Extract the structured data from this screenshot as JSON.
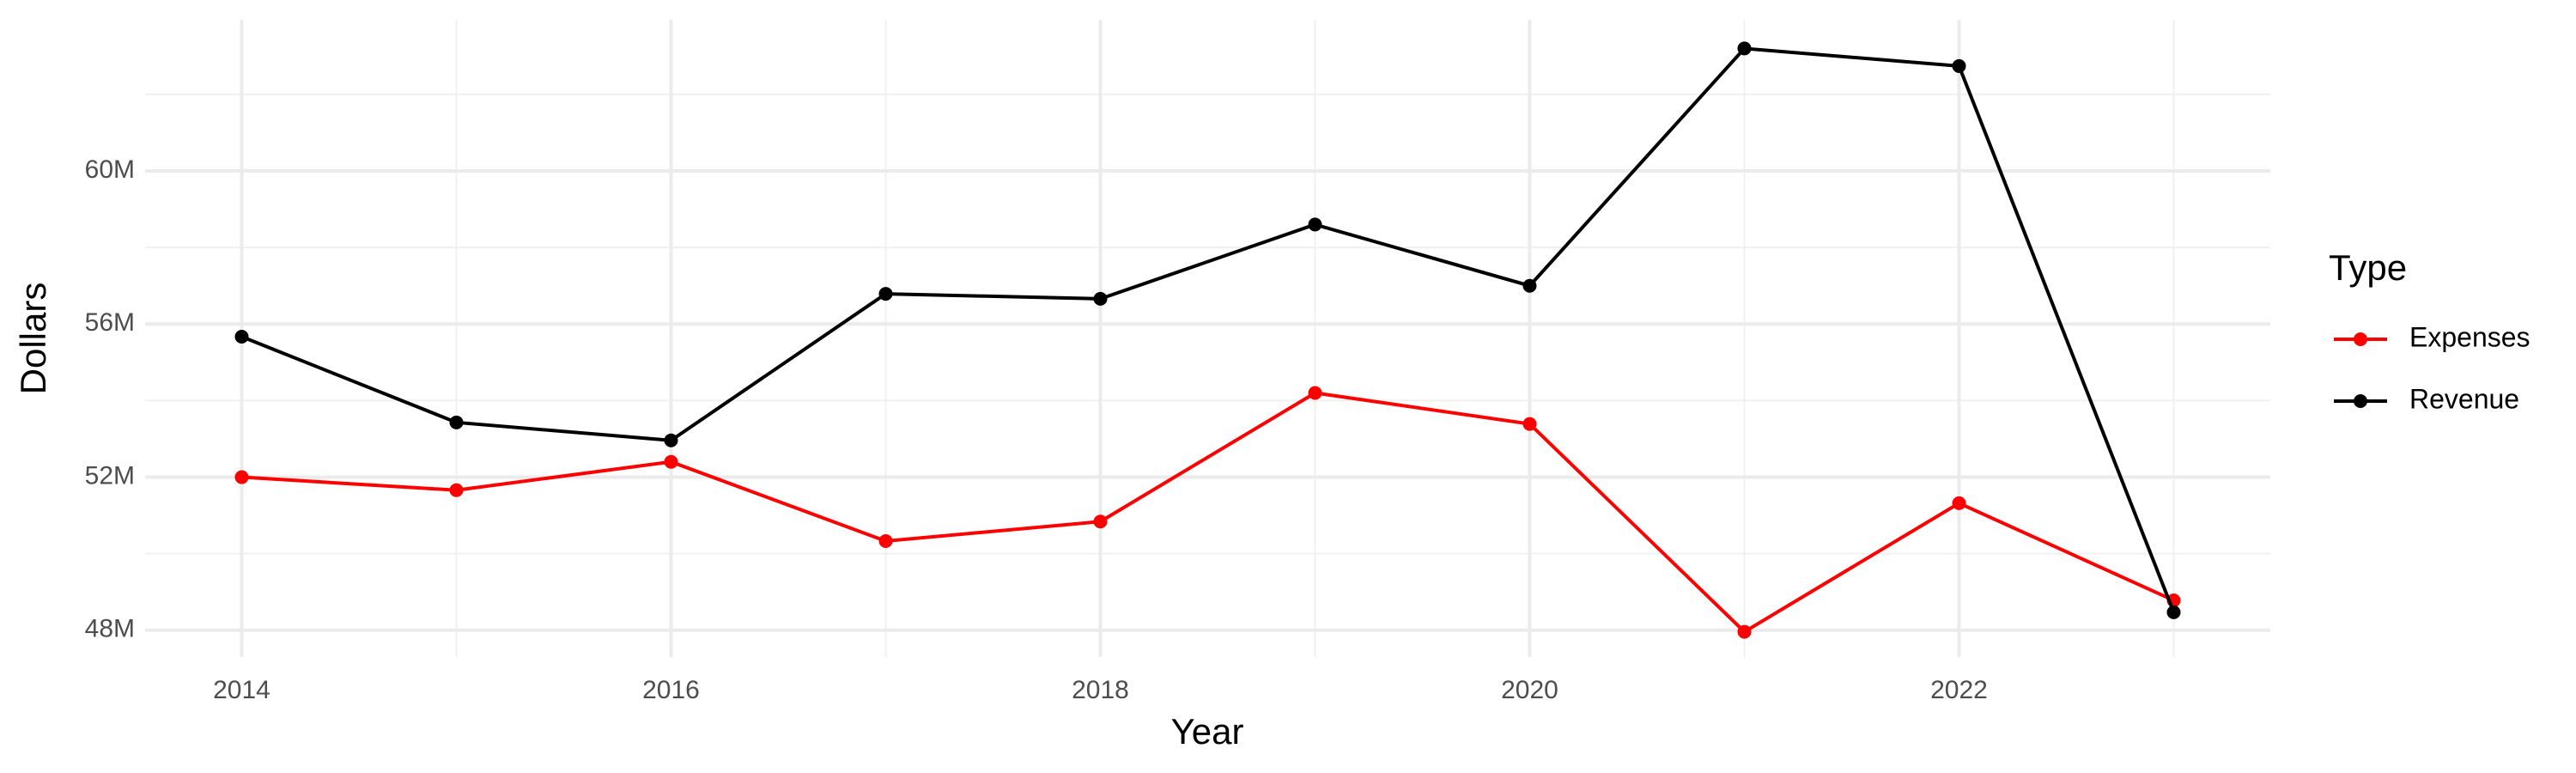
{
  "chart_data": {
    "type": "line",
    "x_label": "Year",
    "y_label": "Dollars",
    "legend_title": "Type",
    "legend_position": "right",
    "grid": true,
    "x": [
      2014,
      2015,
      2016,
      2017,
      2018,
      2019,
      2020,
      2021,
      2022,
      2023
    ],
    "series": [
      {
        "name": "Expenses",
        "color": "#ff0000",
        "values": [
          52000000,
          51660000,
          52400000,
          50330000,
          50840000,
          54200000,
          53390000,
          47960000,
          51320000,
          48780000
        ]
      },
      {
        "name": "Revenue",
        "color": "#000000",
        "values": [
          55670000,
          53430000,
          52960000,
          56790000,
          56660000,
          58600000,
          57000000,
          63200000,
          62740000,
          48470000
        ]
      }
    ],
    "xlim": [
      2013.55,
      2023.45
    ],
    "xticks": [
      2014,
      2016,
      2018,
      2020,
      2022
    ],
    "ylim": [
      47300000,
      63950000
    ],
    "yticks": [
      {
        "value": 48000000,
        "label": "48M"
      },
      {
        "value": 52000000,
        "label": "52M"
      },
      {
        "value": 56000000,
        "label": "56M"
      },
      {
        "value": 60000000,
        "label": "60M"
      }
    ]
  }
}
